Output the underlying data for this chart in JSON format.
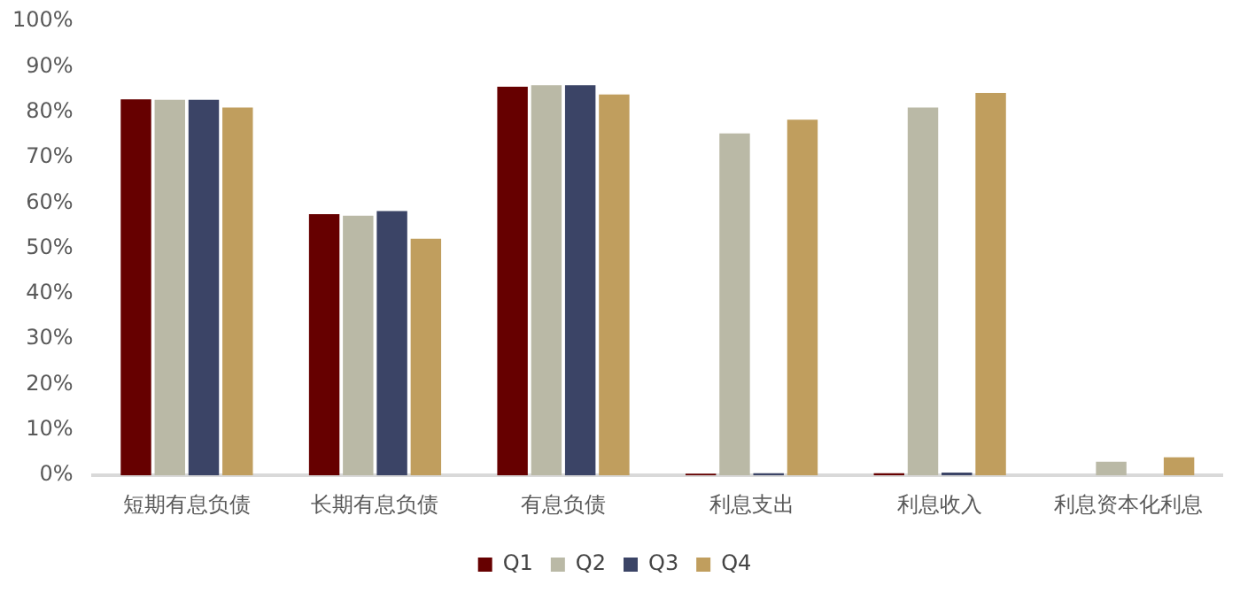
{
  "chart_data": {
    "type": "bar",
    "categories": [
      "短期有息负债",
      "长期有息负债",
      "有息负债",
      "利息支出",
      "利息收入",
      "利息资本化利息"
    ],
    "series": [
      {
        "name": "Q1",
        "color": "#660000",
        "values": [
          82.8,
          57.5,
          85.6,
          0.4,
          0.5,
          0
        ]
      },
      {
        "name": "Q2",
        "color": "#bab9a6",
        "values": [
          82.7,
          57.2,
          85.9,
          75.3,
          81,
          3
        ]
      },
      {
        "name": "Q3",
        "color": "#3b4466",
        "values": [
          82.7,
          58.2,
          85.9,
          0.5,
          0.6,
          0
        ]
      },
      {
        "name": "Q4",
        "color": "#c09e5e",
        "values": [
          81,
          52.1,
          83.9,
          78.3,
          84.2,
          4
        ]
      }
    ],
    "ylim": [
      0,
      100
    ],
    "yticks": [
      {
        "value": 0,
        "label": "0%"
      },
      {
        "value": 10,
        "label": "10%"
      },
      {
        "value": 20,
        "label": "20%"
      },
      {
        "value": 30,
        "label": "30%"
      },
      {
        "value": 40,
        "label": "40%"
      },
      {
        "value": 50,
        "label": "50%"
      },
      {
        "value": 60,
        "label": "60%"
      },
      {
        "value": 70,
        "label": "70%"
      },
      {
        "value": 80,
        "label": "80%"
      },
      {
        "value": 90,
        "label": "90%"
      },
      {
        "value": 100,
        "label": "100%"
      }
    ],
    "grid": false,
    "legend": "bottom"
  }
}
